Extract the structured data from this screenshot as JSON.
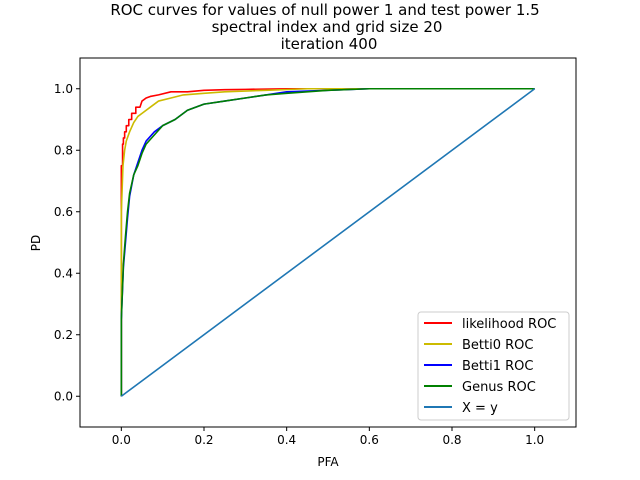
{
  "chart_data": {
    "type": "line",
    "title_lines": [
      "ROC curves for values of null power 1 and test power 1.5",
      "spectral index and grid size 20",
      "iteration 400"
    ],
    "xlabel": "PFA",
    "ylabel": "PD",
    "xlim": [
      -0.1,
      1.1
    ],
    "ylim": [
      -0.1,
      1.1
    ],
    "xticks": [
      0.0,
      0.2,
      0.4,
      0.6,
      0.8,
      1.0
    ],
    "xtick_labels": [
      "0.0",
      "0.2",
      "0.4",
      "0.6",
      "0.8",
      "1.0"
    ],
    "yticks": [
      0.0,
      0.2,
      0.4,
      0.6,
      0.8,
      1.0
    ],
    "ytick_labels": [
      "0.0",
      "0.2",
      "0.4",
      "0.6",
      "0.8",
      "1.0"
    ],
    "grid": false,
    "legend_position": "lower-right",
    "series": [
      {
        "name": "likelihood ROC",
        "color": "#ff0000",
        "x": [
          0.0,
          0.0,
          0.003,
          0.003,
          0.005,
          0.005,
          0.008,
          0.008,
          0.012,
          0.012,
          0.018,
          0.018,
          0.025,
          0.025,
          0.035,
          0.035,
          0.045,
          0.05,
          0.06,
          0.07,
          0.09,
          0.12,
          0.16,
          0.2,
          0.25,
          0.3,
          0.4,
          0.5,
          1.0
        ],
        "y": [
          0.0,
          0.75,
          0.75,
          0.82,
          0.82,
          0.84,
          0.84,
          0.86,
          0.86,
          0.88,
          0.88,
          0.9,
          0.9,
          0.92,
          0.92,
          0.94,
          0.94,
          0.96,
          0.97,
          0.975,
          0.98,
          0.99,
          0.99,
          0.995,
          0.997,
          0.998,
          1.0,
          1.0,
          1.0
        ]
      },
      {
        "name": "Betti0 ROC",
        "color": "#ccbb00",
        "x": [
          0.0,
          0.0,
          0.004,
          0.008,
          0.012,
          0.02,
          0.03,
          0.04,
          0.05,
          0.07,
          0.09,
          0.12,
          0.15,
          0.2,
          0.25,
          0.35,
          0.45,
          1.0
        ],
        "y": [
          0.0,
          0.6,
          0.75,
          0.8,
          0.83,
          0.86,
          0.89,
          0.91,
          0.92,
          0.94,
          0.96,
          0.97,
          0.98,
          0.985,
          0.99,
          0.995,
          1.0,
          1.0
        ],
        "_note": ""
      },
      {
        "name": "Betti1 ROC",
        "color": "#0000ff",
        "x": [
          0.0,
          0.0,
          0.005,
          0.01,
          0.015,
          0.02,
          0.03,
          0.04,
          0.05,
          0.06,
          0.08,
          0.1,
          0.13,
          0.16,
          0.2,
          0.25,
          0.3,
          0.35,
          0.4,
          0.5,
          0.6,
          1.0
        ],
        "y": [
          0.0,
          0.25,
          0.42,
          0.5,
          0.58,
          0.65,
          0.72,
          0.76,
          0.8,
          0.83,
          0.86,
          0.88,
          0.9,
          0.93,
          0.95,
          0.96,
          0.97,
          0.98,
          0.99,
          0.995,
          1.0,
          1.0
        ]
      },
      {
        "name": "Genus ROC",
        "color": "#008000",
        "x": [
          0.0,
          0.0,
          0.005,
          0.01,
          0.015,
          0.02,
          0.03,
          0.04,
          0.05,
          0.06,
          0.08,
          0.1,
          0.13,
          0.16,
          0.2,
          0.25,
          0.3,
          0.35,
          0.4,
          0.5,
          0.6,
          1.0
        ],
        "y": [
          0.0,
          0.25,
          0.43,
          0.52,
          0.6,
          0.66,
          0.72,
          0.75,
          0.79,
          0.82,
          0.85,
          0.88,
          0.9,
          0.93,
          0.95,
          0.96,
          0.97,
          0.98,
          0.985,
          0.995,
          1.0,
          1.0
        ]
      },
      {
        "name": "X = y",
        "color": "#1f77b4",
        "x": [
          0.0,
          1.0
        ],
        "y": [
          0.0,
          1.0
        ]
      }
    ]
  }
}
